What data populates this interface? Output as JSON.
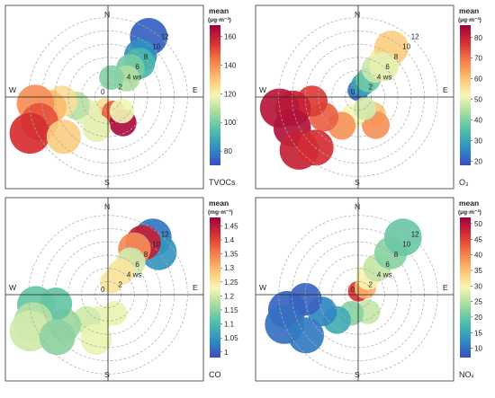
{
  "chart_data": [
    {
      "type": "heatmap",
      "subtype": "polar",
      "pollutant": "TVOCs",
      "legend_title": "mean",
      "legend_unit": "(μg·m⁻³)",
      "legend_ticks": [
        80,
        100,
        120,
        140,
        160
      ],
      "scale": [
        70,
        168
      ],
      "directions": [
        "N",
        "E",
        "S",
        "W"
      ],
      "ws_labels": [
        "2",
        "4 ws",
        "6",
        "8",
        "10",
        "12"
      ],
      "ws_ticks": [
        2,
        4,
        6,
        8,
        10,
        12
      ],
      "rlim": [
        0,
        14
      ],
      "blobs": [
        [
          34,
          11,
          74
        ],
        [
          38,
          8,
          82
        ],
        [
          43,
          7,
          92
        ],
        [
          38,
          5.5,
          100
        ],
        [
          45,
          4,
          108
        ],
        [
          10,
          3,
          102
        ],
        [
          195,
          2,
          125
        ],
        [
          160,
          2.5,
          148
        ],
        [
          150,
          4.5,
          165
        ],
        [
          135,
          3,
          118
        ],
        [
          235,
          4,
          116
        ],
        [
          255,
          5,
          110
        ],
        [
          265,
          7,
          124
        ],
        [
          260,
          9,
          132
        ],
        [
          265,
          11,
          140
        ],
        [
          250,
          11,
          150
        ],
        [
          245,
          13,
          156
        ],
        [
          228,
          9,
          128
        ],
        [
          200,
          5,
          116
        ]
      ]
    },
    {
      "type": "heatmap",
      "subtype": "polar",
      "pollutant": "O₃",
      "legend_title": "mean",
      "legend_unit": "(μg·m⁻³)",
      "legend_ticks": [
        20,
        30,
        40,
        50,
        60,
        70,
        80
      ],
      "scale": [
        18,
        86
      ],
      "directions": [
        "N",
        "E",
        "S",
        "W"
      ],
      "ws_labels": [
        "2",
        "4 ws",
        "6",
        "8",
        "10",
        "12"
      ],
      "ws_ticks": [
        2,
        4,
        6,
        8,
        10,
        12
      ],
      "rlim": [
        0,
        14
      ],
      "blobs": [
        [
          0,
          1,
          22
        ],
        [
          20,
          2,
          30
        ],
        [
          30,
          3,
          38
        ],
        [
          32,
          5,
          47
        ],
        [
          36,
          7,
          54
        ],
        [
          34,
          9,
          58
        ],
        [
          40,
          6,
          50
        ],
        [
          140,
          3.5,
          60
        ],
        [
          148,
          5,
          66
        ],
        [
          195,
          3,
          52
        ],
        [
          210,
          5,
          66
        ],
        [
          240,
          6,
          72
        ],
        [
          265,
          7,
          76
        ],
        [
          260,
          10,
          80
        ],
        [
          262,
          12,
          82
        ],
        [
          245,
          11,
          83
        ],
        [
          228,
          12,
          80
        ],
        [
          220,
          10,
          78
        ],
        [
          150,
          2,
          48
        ]
      ]
    },
    {
      "type": "heatmap",
      "subtype": "polar",
      "pollutant": "CO",
      "legend_title": "mean",
      "legend_unit": "(mg·m⁻³)",
      "legend_ticks": [
        1,
        1.05,
        1.1,
        1.15,
        1.2,
        1.25,
        1.3,
        1.35,
        1.4,
        1.45
      ],
      "scale": [
        0.98,
        1.48
      ],
      "directions": [
        "N",
        "E",
        "S",
        "W"
      ],
      "ws_labels": [
        "2",
        "4 ws",
        "6",
        "8",
        "10",
        "12"
      ],
      "ws_ticks": [
        2,
        4,
        6,
        8,
        10,
        12
      ],
      "rlim": [
        0,
        14
      ],
      "blobs": [
        [
          38,
          11,
          1.02
        ],
        [
          50,
          10,
          1.05
        ],
        [
          34,
          9.5,
          1.44
        ],
        [
          30,
          8,
          1.34
        ],
        [
          35,
          6,
          1.2
        ],
        [
          30,
          4,
          1.25
        ],
        [
          15,
          2,
          1.25
        ],
        [
          200,
          4,
          1.22
        ],
        [
          220,
          5,
          1.2
        ],
        [
          195,
          7,
          1.22
        ],
        [
          160,
          3,
          1.22
        ],
        [
          235,
          8,
          1.16
        ],
        [
          260,
          8,
          1.12
        ],
        [
          262,
          11,
          1.12
        ],
        [
          250,
          12,
          1.18
        ],
        [
          245,
          13,
          1.2
        ],
        [
          230,
          10,
          1.15
        ]
      ]
    },
    {
      "type": "heatmap",
      "subtype": "polar",
      "pollutant": "NOₓ",
      "legend_title": "mean",
      "legend_unit": "(μg·m⁻³)",
      "legend_ticks": [
        10,
        15,
        20,
        25,
        30,
        35,
        40,
        45,
        50
      ],
      "scale": [
        7,
        52
      ],
      "directions": [
        "N",
        "E",
        "S",
        "W"
      ],
      "ws_labels": [
        "2",
        "4 ws",
        "6",
        "8",
        "10",
        "12"
      ],
      "ws_ticks": [
        2,
        4,
        6,
        8,
        10,
        12
      ],
      "rlim": [
        0,
        14
      ],
      "blobs": [
        [
          0,
          0.5,
          46
        ],
        [
          45,
          1.5,
          36
        ],
        [
          30,
          3,
          30
        ],
        [
          35,
          5,
          26
        ],
        [
          38,
          8,
          22
        ],
        [
          38,
          11,
          20
        ],
        [
          150,
          3,
          26
        ],
        [
          200,
          3,
          22
        ],
        [
          220,
          5,
          16
        ],
        [
          245,
          6,
          12
        ],
        [
          265,
          8,
          9
        ],
        [
          258,
          11,
          9
        ],
        [
          248,
          12,
          10
        ],
        [
          232,
          10,
          11
        ]
      ]
    }
  ]
}
